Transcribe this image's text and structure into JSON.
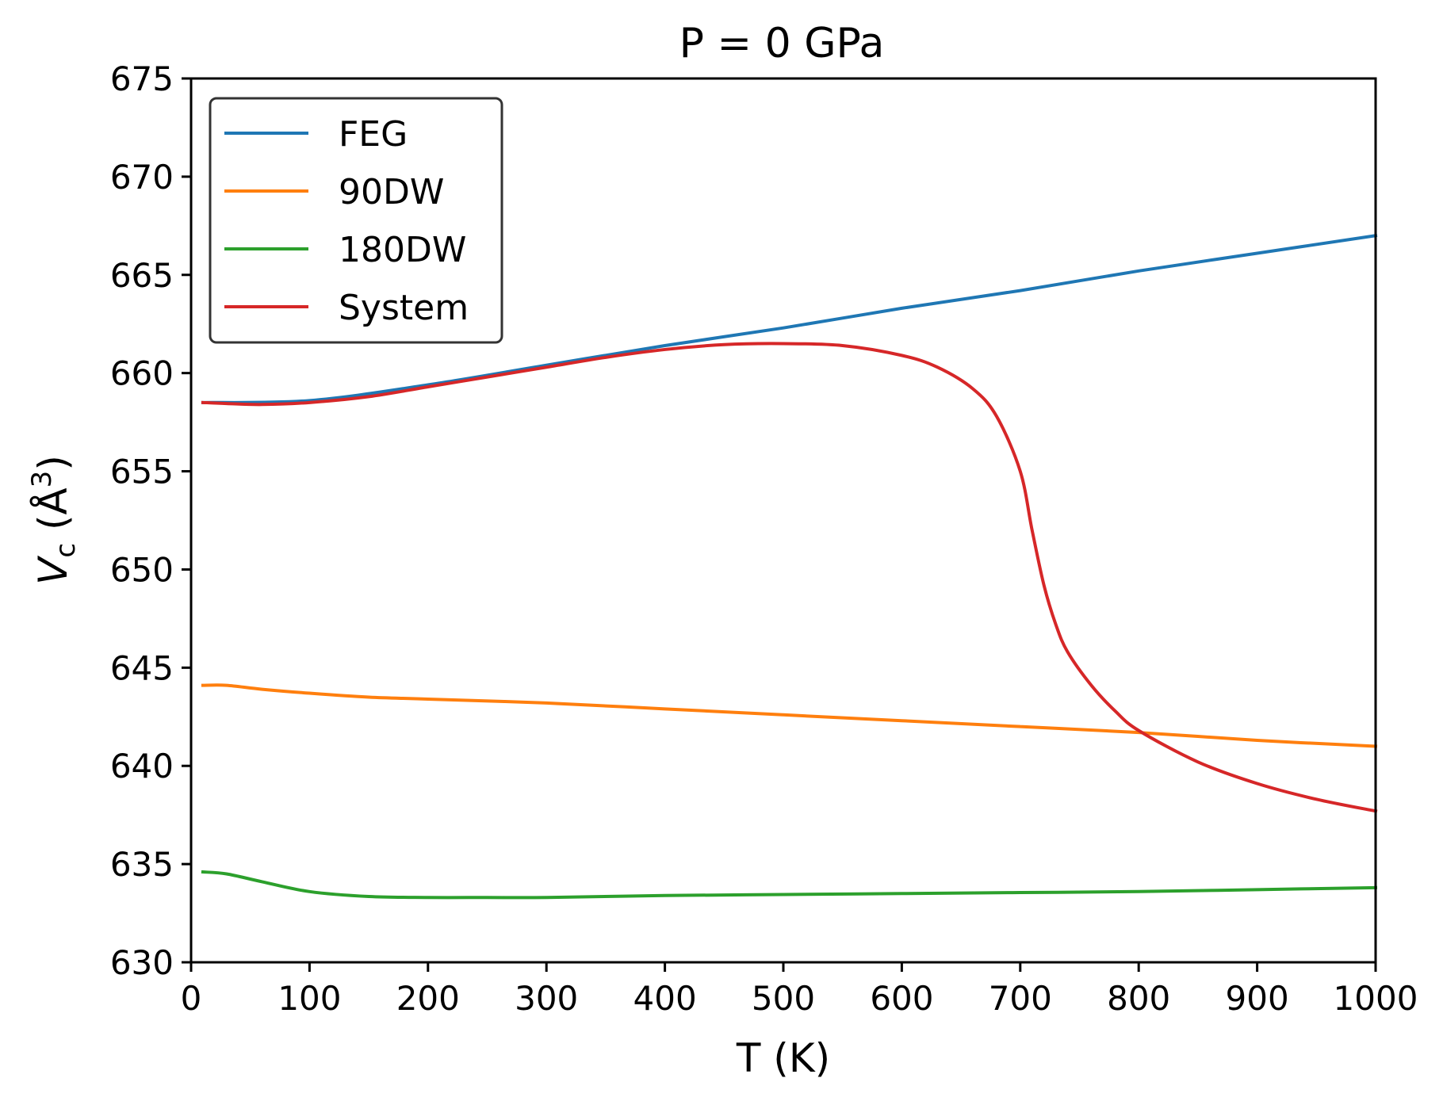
{
  "chart_data": {
    "type": "line",
    "title": "P = 0 GPa",
    "xlabel": "T (K)",
    "ylabel": {
      "symbol": "V",
      "subscript": "c",
      "unit_open": " (Å",
      "unit_sup": "3",
      "unit_close": ")"
    },
    "xlim": [
      0,
      1000
    ],
    "ylim": [
      630,
      675
    ],
    "xticks": [
      "0",
      "100",
      "200",
      "300",
      "400",
      "500",
      "600",
      "700",
      "800",
      "900",
      "1000"
    ],
    "yticks": [
      "630",
      "635",
      "640",
      "645",
      "650",
      "655",
      "660",
      "665",
      "670",
      "675"
    ],
    "grid": false,
    "legend_position": "upper-left",
    "series": [
      {
        "name": "FEG",
        "color": "#1f77b4",
        "x": [
          10,
          100,
          200,
          300,
          400,
          500,
          600,
          700,
          800,
          900,
          1000
        ],
        "y": [
          658.5,
          658.6,
          659.4,
          660.4,
          661.4,
          662.3,
          663.3,
          664.2,
          665.2,
          666.1,
          667.0
        ]
      },
      {
        "name": "90DW",
        "color": "#ff7f0e",
        "x": [
          10,
          30,
          60,
          100,
          150,
          200,
          300,
          400,
          500,
          600,
          700,
          800,
          900,
          1000
        ],
        "y": [
          644.1,
          644.1,
          643.9,
          643.7,
          643.5,
          643.4,
          643.2,
          642.9,
          642.6,
          642.3,
          642.0,
          641.7,
          641.3,
          641.0
        ]
      },
      {
        "name": "180DW",
        "color": "#2ca02c",
        "x": [
          10,
          30,
          60,
          100,
          150,
          200,
          250,
          300,
          400,
          500,
          600,
          700,
          800,
          900,
          1000
        ],
        "y": [
          634.6,
          634.5,
          634.1,
          633.6,
          633.35,
          633.3,
          633.3,
          633.3,
          633.4,
          633.45,
          633.5,
          633.55,
          633.6,
          633.7,
          633.8
        ]
      },
      {
        "name": "System",
        "color": "#d62728",
        "x": [
          10,
          30,
          60,
          100,
          150,
          200,
          250,
          300,
          350,
          400,
          450,
          500,
          550,
          600,
          630,
          660,
          680,
          700,
          710,
          720,
          730,
          740,
          760,
          780,
          800,
          850,
          900,
          950,
          1000
        ],
        "y": [
          658.5,
          658.45,
          658.4,
          658.5,
          658.8,
          659.3,
          659.8,
          660.3,
          660.8,
          661.2,
          661.45,
          661.5,
          661.4,
          660.9,
          660.3,
          659.2,
          657.8,
          655.0,
          652.0,
          649.2,
          647.2,
          645.8,
          644.1,
          642.8,
          641.8,
          640.2,
          639.1,
          638.3,
          637.7
        ]
      }
    ]
  }
}
